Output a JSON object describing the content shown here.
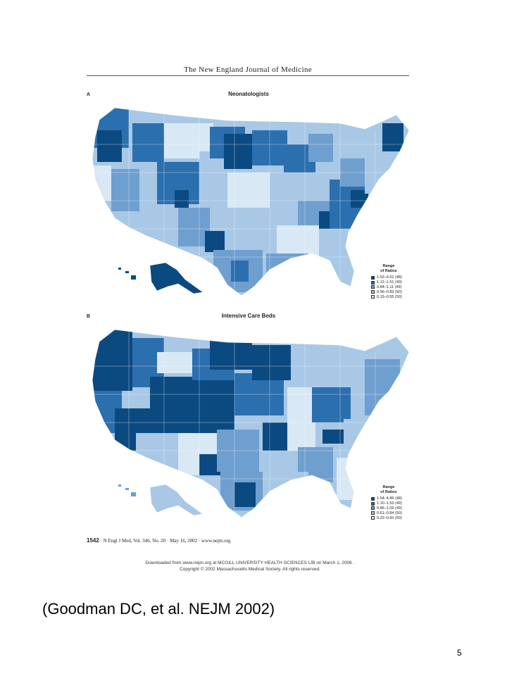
{
  "header": {
    "journal_title": "The New England Journal of Medicine"
  },
  "panels": [
    {
      "letter": "A",
      "title": "Neonatologists",
      "legend": {
        "title_line1": "Range",
        "title_line2": "of Ratios",
        "items": [
          {
            "label": "1.52–4.51 (48)",
            "color": "#0b4a80"
          },
          {
            "label": "1.12–1.51 (49)",
            "color": "#2c6fae"
          },
          {
            "label": "0.84–1.11 (49)",
            "color": "#6f9fcf"
          },
          {
            "label": "0.56–0.83 (50)",
            "color": "#a8c8e6"
          },
          {
            "label": "0.15–0.55 (50)",
            "color": "#d9e8f5"
          }
        ]
      }
    },
    {
      "letter": "B",
      "title": "Intensive Care Beds",
      "legend": {
        "title_line1": "Range",
        "title_line2": "of Ratios",
        "items": [
          {
            "label": "1.54–4.86 (48)",
            "color": "#0b4a80"
          },
          {
            "label": "1.10–1.53 (49)",
            "color": "#2c6fae"
          },
          {
            "label": "0.85–1.09 (49)",
            "color": "#6f9fcf"
          },
          {
            "label": "0.61–0.84 (50)",
            "color": "#a8c8e6"
          },
          {
            "label": "0.22–0.60 (50)",
            "color": "#d9e8f5"
          }
        ]
      }
    }
  ],
  "footer": {
    "page": "1542",
    "citation_line": "· N Engl J Med, Vol. 346, No. 20 · May 16, 2002 · www.nejm.org",
    "download_line1": "Downloaded from www.nejm.org at MCGILL UNIVERSITY HEALTH SCIENCES LIB on March 1, 2006 .",
    "download_line2": "Copyright © 2002 Massachusetts Medical Society. All rights reserved."
  },
  "slide": {
    "citation": "(Goodman DC, et al. NEJM 2002)",
    "page_number": "5"
  },
  "colors": {
    "level1": "#0b4a80",
    "level2": "#2c6fae",
    "level3": "#6f9fcf",
    "level4": "#a8c8e6",
    "level5": "#d9e8f5"
  }
}
